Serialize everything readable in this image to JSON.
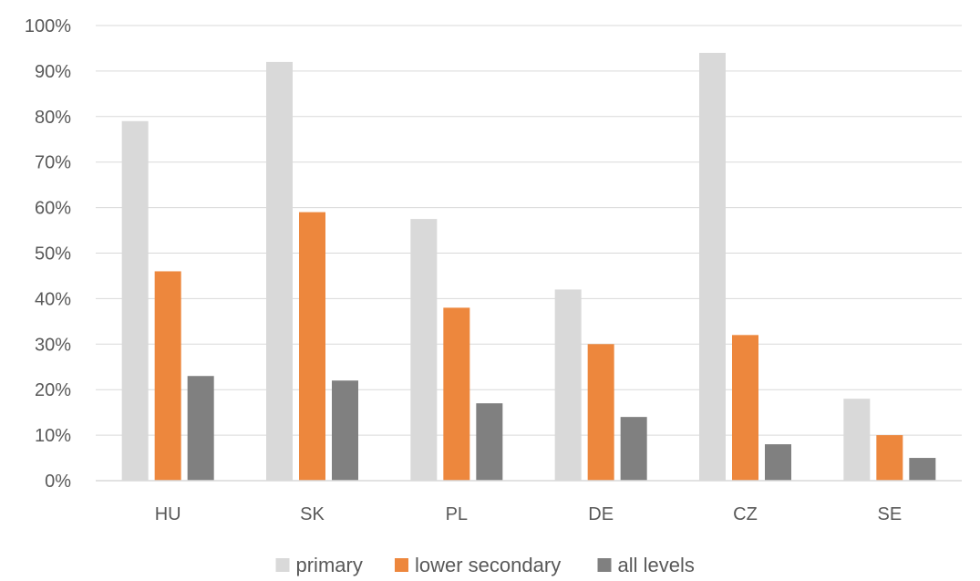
{
  "chart_data": {
    "type": "bar",
    "title": "",
    "xlabel": "",
    "ylabel": "",
    "categories": [
      "HU",
      "SK",
      "PL",
      "DE",
      "CZ",
      "SE"
    ],
    "series": [
      {
        "name": "primary",
        "color": "#d9d9d9",
        "values": [
          0.79,
          0.92,
          0.575,
          0.42,
          0.94,
          0.18
        ]
      },
      {
        "name": "lower secondary",
        "color": "#ed873d",
        "values": [
          0.46,
          0.59,
          0.38,
          0.3,
          0.32,
          0.1
        ]
      },
      {
        "name": "all levels",
        "color": "#808080",
        "values": [
          0.23,
          0.22,
          0.17,
          0.14,
          0.08,
          0.05
        ]
      }
    ],
    "ylim": [
      0,
      1
    ],
    "y_ticks": [
      {
        "value": 0,
        "label": "0%"
      },
      {
        "value": 0.1,
        "label": "10%"
      },
      {
        "value": 0.2,
        "label": "20%"
      },
      {
        "value": 0.3,
        "label": "30%"
      },
      {
        "value": 0.4,
        "label": "40%"
      },
      {
        "value": 0.5,
        "label": "50%"
      },
      {
        "value": 0.6,
        "label": "60%"
      },
      {
        "value": 0.7,
        "label": "70%"
      },
      {
        "value": 0.8,
        "label": "80%"
      },
      {
        "value": 0.9,
        "label": "90%"
      },
      {
        "value": 1.0,
        "label": "100%"
      }
    ],
    "grid": true,
    "legend_position": "bottom",
    "colors": {
      "gridline": "#d9d9d9",
      "axis": "#d9d9d9",
      "text": "#595959"
    }
  }
}
